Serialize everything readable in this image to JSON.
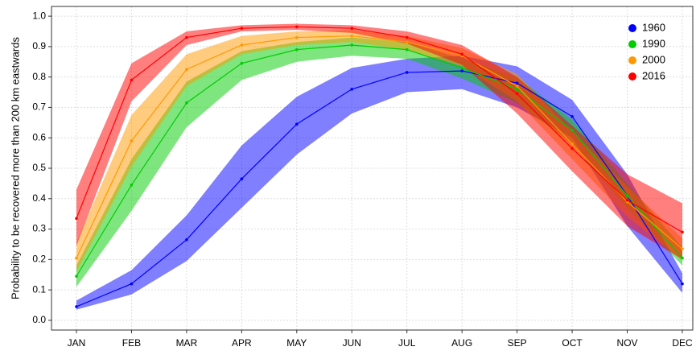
{
  "chart_data": {
    "type": "line",
    "y_label": "Probability to be recovered more than 200 km eastwards",
    "categories": [
      "JAN",
      "FEB",
      "MAR",
      "APR",
      "MAY",
      "JUN",
      "JUL",
      "AUG",
      "SEP",
      "OCT",
      "NOV",
      "DEC"
    ],
    "ylim": [
      -0.032,
      1.032
    ],
    "yticks": [
      {
        "value": 0,
        "label": "0.0"
      },
      0.1,
      0.2,
      0.3,
      0.4,
      0.5,
      0.6,
      0.7,
      0.8,
      0.9,
      {
        "value": 1,
        "label": "1.0"
      }
    ],
    "grid": true,
    "legend": "top-right",
    "series": [
      {
        "name": "1960",
        "color": "#0000ff",
        "values": [
          0.045,
          0.12,
          0.265,
          0.465,
          0.645,
          0.76,
          0.815,
          0.82,
          0.78,
          0.67,
          0.41,
          0.12
        ],
        "lower": [
          0.035,
          0.085,
          0.195,
          0.37,
          0.545,
          0.68,
          0.75,
          0.76,
          0.7,
          0.6,
          0.31,
          0.09
        ],
        "upper": [
          0.065,
          0.165,
          0.345,
          0.575,
          0.735,
          0.83,
          0.86,
          0.87,
          0.835,
          0.725,
          0.48,
          0.155
        ]
      },
      {
        "name": "1990",
        "color": "#00cc00",
        "values": [
          0.145,
          0.445,
          0.715,
          0.845,
          0.89,
          0.905,
          0.89,
          0.83,
          0.76,
          0.625,
          0.41,
          0.205
        ],
        "lower": [
          0.11,
          0.36,
          0.635,
          0.79,
          0.85,
          0.87,
          0.86,
          0.795,
          0.715,
          0.58,
          0.37,
          0.18
        ],
        "upper": [
          0.18,
          0.53,
          0.785,
          0.885,
          0.915,
          0.93,
          0.915,
          0.86,
          0.8,
          0.66,
          0.45,
          0.24
        ]
      },
      {
        "name": "2000",
        "color": "#ff9900",
        "values": [
          0.205,
          0.59,
          0.825,
          0.905,
          0.93,
          0.935,
          0.915,
          0.87,
          0.77,
          0.58,
          0.39,
          0.235
        ],
        "lower": [
          0.16,
          0.505,
          0.77,
          0.875,
          0.905,
          0.915,
          0.89,
          0.835,
          0.72,
          0.53,
          0.34,
          0.2
        ],
        "upper": [
          0.255,
          0.675,
          0.875,
          0.935,
          0.95,
          0.955,
          0.935,
          0.895,
          0.81,
          0.62,
          0.44,
          0.27
        ]
      },
      {
        "name": "2016",
        "color": "#ff0000",
        "values": [
          0.335,
          0.79,
          0.93,
          0.96,
          0.965,
          0.96,
          0.93,
          0.875,
          0.745,
          0.565,
          0.395,
          0.29
        ],
        "lower": [
          0.245,
          0.72,
          0.905,
          0.95,
          0.955,
          0.945,
          0.91,
          0.84,
          0.68,
          0.49,
          0.31,
          0.2
        ],
        "upper": [
          0.43,
          0.845,
          0.95,
          0.97,
          0.975,
          0.97,
          0.95,
          0.905,
          0.8,
          0.64,
          0.48,
          0.385
        ]
      }
    ]
  }
}
